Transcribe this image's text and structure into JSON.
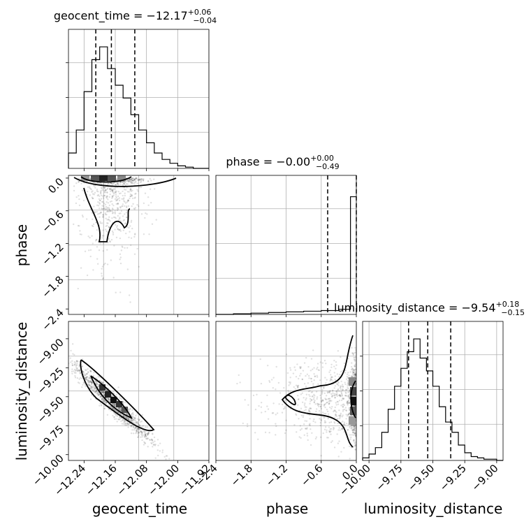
{
  "chart_data": [
    {
      "type": "histogram",
      "panel": "geocent_time",
      "title": {
        "prefix": "geocent_time = −12.17",
        "sup": "+0.06",
        "sub": "−0.04"
      },
      "x_label": "geocent_time",
      "xlim": [
        -12.28,
        -11.92
      ],
      "x_ticks": [
        -12.24,
        -12.16,
        -12.08,
        -12.0,
        -11.92
      ],
      "x_tick_labels": [
        "−12.24",
        "−12.16",
        "−12.08",
        "−12.00",
        "−11.92"
      ],
      "bin_edges": [
        -12.28,
        -12.26,
        -12.24,
        -12.22,
        -12.2,
        -12.18,
        -12.16,
        -12.14,
        -12.12,
        -12.1,
        -12.08,
        -12.06,
        -12.04,
        -12.02,
        -12.0,
        -11.98,
        -11.96,
        -11.94,
        -11.92
      ],
      "counts": [
        0.12,
        0.3,
        0.6,
        0.85,
        0.95,
        0.78,
        0.65,
        0.55,
        0.42,
        0.3,
        0.2,
        0.12,
        0.07,
        0.04,
        0.02,
        0.01,
        0.0,
        0.0
      ],
      "ymax": 1.0,
      "quantiles": [
        -12.21,
        -12.17,
        -12.11
      ]
    },
    {
      "type": "histogram",
      "panel": "phase",
      "title": {
        "prefix": "phase = −0.00",
        "sup": "+0.00",
        "sub": "−0.49"
      },
      "x_label": "phase",
      "xlim": [
        -2.4,
        0.0
      ],
      "x_ticks": [
        -2.4,
        -1.8,
        -1.2,
        -0.6,
        0.0
      ],
      "x_tick_labels": [
        "−2.4",
        "−1.8",
        "−1.2",
        "−0.6",
        "0.0"
      ],
      "bin_edges": [
        -2.4,
        -2.1,
        -1.8,
        -1.5,
        -1.2,
        -0.9,
        -0.6,
        -0.3,
        -0.1,
        0.0
      ],
      "counts": [
        0.0,
        0.005,
        0.01,
        0.015,
        0.02,
        0.025,
        0.03,
        0.04,
        0.92
      ],
      "ymax": 1.0,
      "quantiles": [
        -0.49,
        -0.0
      ]
    },
    {
      "type": "histogram",
      "panel": "luminosity_distance",
      "title": {
        "prefix": "luminosity_distance = −9.54",
        "sup": "+0.18",
        "sub": "−0.15"
      },
      "x_label": "luminosity_distance",
      "xlim": [
        -10.05,
        -8.95
      ],
      "x_ticks": [
        -10.0,
        -9.75,
        -9.5,
        -9.25,
        -9.0
      ],
      "x_tick_labels": [
        "−10.00",
        "−9.75",
        "−9.50",
        "−9.25",
        "−9.00"
      ],
      "bin_edges": [
        -10.05,
        -10.0,
        -9.95,
        -9.9,
        -9.85,
        -9.8,
        -9.75,
        -9.7,
        -9.65,
        -9.6,
        -9.55,
        -9.5,
        -9.45,
        -9.4,
        -9.35,
        -9.3,
        -9.25,
        -9.2,
        -9.15,
        -9.1,
        -9.05,
        -9.0,
        -8.95
      ],
      "counts": [
        0.02,
        0.05,
        0.1,
        0.22,
        0.4,
        0.58,
        0.72,
        0.85,
        0.95,
        0.8,
        0.7,
        0.58,
        0.42,
        0.3,
        0.22,
        0.12,
        0.06,
        0.03,
        0.02,
        0.01,
        0.01,
        0.0
      ],
      "ymax": 1.0,
      "quantiles": [
        -9.69,
        -9.54,
        -9.36
      ]
    },
    {
      "type": "scatter",
      "panel": "phase_vs_geocent_time",
      "x_label": "geocent_time",
      "y_label": "phase",
      "xlim": [
        -12.28,
        -11.92
      ],
      "ylim": [
        -2.5,
        0.05
      ],
      "y_ticks": [
        0.0,
        -0.6,
        -1.2,
        -1.8,
        -2.4
      ],
      "y_tick_labels": [
        "0.0",
        "−0.6",
        "−1.2",
        "−1.8",
        "−2.4"
      ]
    },
    {
      "type": "scatter",
      "panel": "luminosity_distance_vs_geocent_time",
      "x_label": "geocent_time",
      "y_label": "luminosity_distance",
      "xlim": [
        -12.28,
        -11.92
      ],
      "ylim": [
        -10.05,
        -8.85
      ],
      "y_ticks": [
        -9.0,
        -9.25,
        -9.5,
        -9.75,
        -10.0
      ],
      "y_tick_labels": [
        "−9.00",
        "−9.25",
        "−9.50",
        "−9.75",
        "−10.00"
      ]
    },
    {
      "type": "scatter",
      "panel": "luminosity_distance_vs_phase",
      "x_label": "phase",
      "y_label": "luminosity_distance",
      "xlim": [
        -2.4,
        0.0
      ],
      "ylim": [
        -10.05,
        -8.85
      ]
    }
  ]
}
